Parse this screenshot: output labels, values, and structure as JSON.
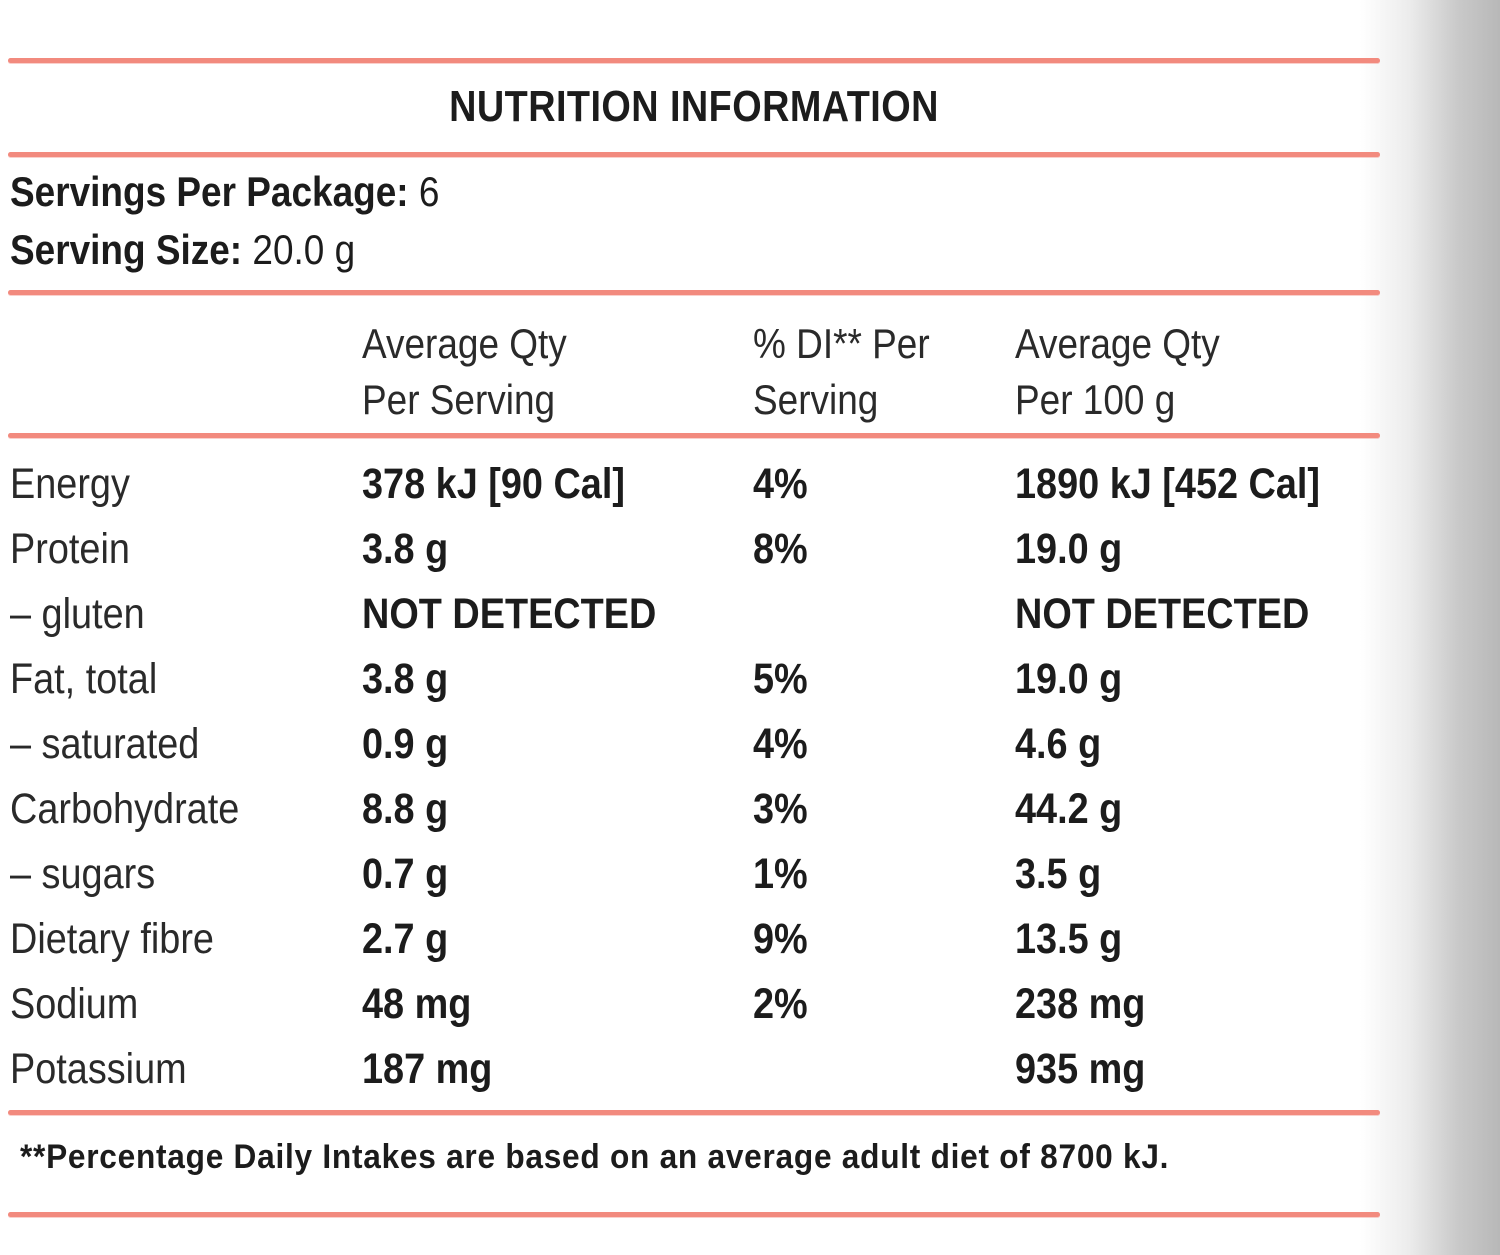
{
  "panel": {
    "title": "NUTRITION INFORMATION",
    "servings_label": "Servings Per Package:",
    "servings_value": "6",
    "size_label": "Serving Size:",
    "size_value": "20.0 g",
    "columns": [
      {
        "line1": "Average Qty",
        "line2": "Per Serving"
      },
      {
        "line1": "% DI** Per",
        "line2": "Serving"
      },
      {
        "line1": "Average Qty",
        "line2": "Per 100 g"
      }
    ],
    "rows": [
      {
        "name": "Energy",
        "per_serving": "378 kJ [90 Cal]",
        "di": "4%",
        "per_100g": "1890 kJ [452 Cal]"
      },
      {
        "name": "Protein",
        "per_serving": "3.8 g",
        "di": "8%",
        "per_100g": "19.0 g"
      },
      {
        "name": "– gluten",
        "per_serving": "NOT DETECTED",
        "di": "",
        "per_100g": "NOT DETECTED"
      },
      {
        "name": "Fat, total",
        "per_serving": "3.8 g",
        "di": "5%",
        "per_100g": "19.0 g"
      },
      {
        "name": "– saturated",
        "per_serving": "0.9 g",
        "di": "4%",
        "per_100g": "4.6 g"
      },
      {
        "name": "Carbohydrate",
        "per_serving": "8.8 g",
        "di": "3%",
        "per_100g": "44.2 g"
      },
      {
        "name": "– sugars",
        "per_serving": "0.7 g",
        "di": "1%",
        "per_100g": "3.5 g"
      },
      {
        "name": "Dietary fibre",
        "per_serving": "2.7 g",
        "di": "9%",
        "per_100g": "13.5 g"
      },
      {
        "name": "Sodium",
        "per_serving": "48 mg",
        "di": "2%",
        "per_100g": "238 mg"
      },
      {
        "name": "Potassium",
        "per_serving": "187 mg",
        "di": "",
        "per_100g": "935 mg"
      }
    ],
    "footnote": "**Percentage Daily Intakes are based on an average adult diet of 8700 kJ."
  }
}
